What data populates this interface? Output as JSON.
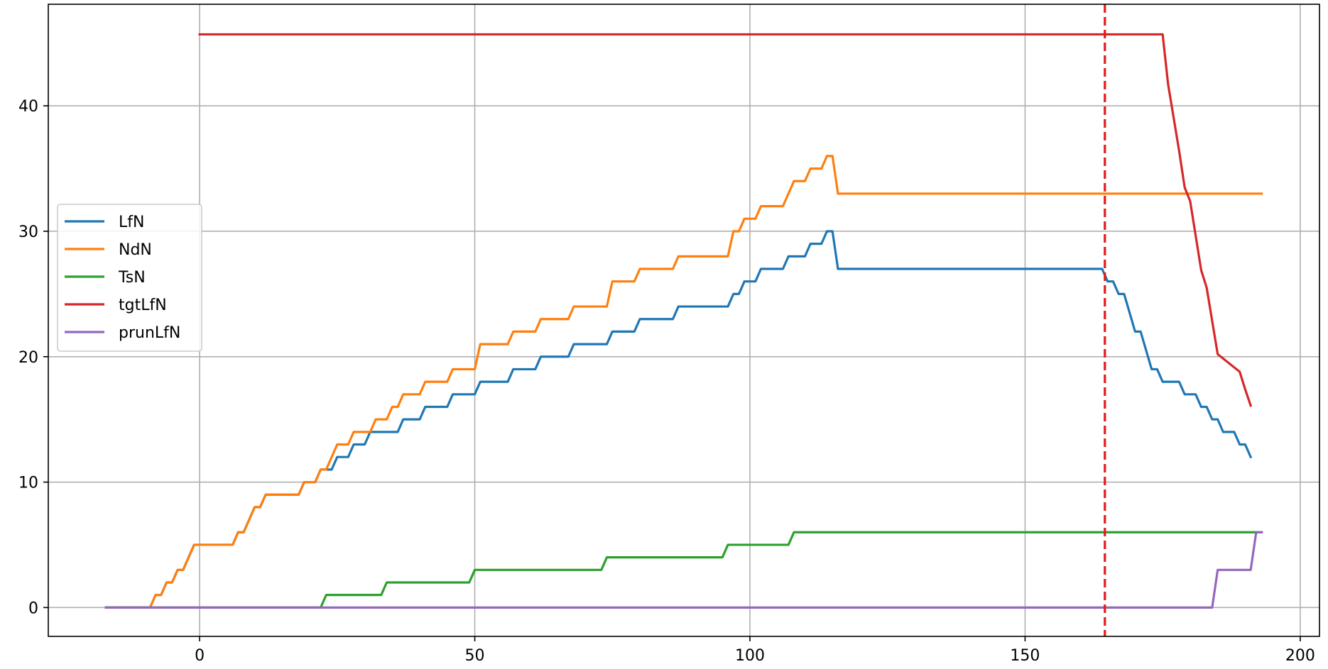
{
  "chart_data": {
    "type": "line",
    "title": "",
    "xlabel": "",
    "ylabel": "",
    "xlim": [
      -27.5,
      203.5
    ],
    "ylim": [
      -2.3,
      48.1
    ],
    "xticks": [
      0,
      50,
      100,
      150,
      200
    ],
    "yticks": [
      0,
      10,
      20,
      30,
      40
    ],
    "grid": true,
    "legend_position": "center-left",
    "vline": {
      "x": 164.5,
      "color": "#e31a1c",
      "style": "dashed"
    },
    "series": [
      {
        "name": "LfN",
        "color": "#1f77b4",
        "points": [
          [
            -17,
            0
          ],
          [
            -9,
            0
          ],
          [
            -8,
            1
          ],
          [
            -7,
            1
          ],
          [
            -6,
            2
          ],
          [
            -5,
            2
          ],
          [
            -4,
            3
          ],
          [
            -3,
            3
          ],
          [
            -1,
            5
          ],
          [
            6,
            5
          ],
          [
            7,
            6
          ],
          [
            8,
            6
          ],
          [
            10,
            8
          ],
          [
            11,
            8
          ],
          [
            12,
            9
          ],
          [
            18,
            9
          ],
          [
            19,
            10
          ],
          [
            21,
            10
          ],
          [
            22,
            11
          ],
          [
            23,
            11
          ],
          [
            24,
            11
          ],
          [
            25,
            12
          ],
          [
            27,
            12
          ],
          [
            28,
            13
          ],
          [
            30,
            13
          ],
          [
            31,
            14
          ],
          [
            36,
            14
          ],
          [
            37,
            15
          ],
          [
            40,
            15
          ],
          [
            41,
            16
          ],
          [
            45,
            16
          ],
          [
            46,
            17
          ],
          [
            50,
            17
          ],
          [
            51,
            18
          ],
          [
            56,
            18
          ],
          [
            57,
            19
          ],
          [
            61,
            19
          ],
          [
            62,
            20
          ],
          [
            67,
            20
          ],
          [
            68,
            21
          ],
          [
            74,
            21
          ],
          [
            75,
            22
          ],
          [
            79,
            22
          ],
          [
            80,
            23
          ],
          [
            86,
            23
          ],
          [
            87,
            24
          ],
          [
            96,
            24
          ],
          [
            97,
            25
          ],
          [
            98,
            25
          ],
          [
            99,
            26
          ],
          [
            101,
            26
          ],
          [
            102,
            27
          ],
          [
            106,
            27
          ],
          [
            107,
            28
          ],
          [
            110,
            28
          ],
          [
            111,
            29
          ],
          [
            113,
            29
          ],
          [
            114,
            30
          ],
          [
            115,
            30
          ],
          [
            116,
            27
          ],
          [
            164,
            27
          ],
          [
            165,
            26
          ],
          [
            166,
            26
          ],
          [
            167,
            25
          ],
          [
            168,
            25
          ],
          [
            170,
            22
          ],
          [
            171,
            22
          ],
          [
            173,
            19
          ],
          [
            174,
            19
          ],
          [
            175,
            18
          ],
          [
            178,
            18
          ],
          [
            179,
            17
          ],
          [
            181,
            17
          ],
          [
            182,
            16
          ],
          [
            183,
            16
          ],
          [
            184,
            15
          ],
          [
            185,
            15
          ],
          [
            186,
            14
          ],
          [
            188,
            14
          ],
          [
            189,
            13
          ],
          [
            190,
            13
          ],
          [
            191,
            12
          ]
        ]
      },
      {
        "name": "NdN",
        "color": "#ff7f0e",
        "points": [
          [
            -17,
            0
          ],
          [
            -9,
            0
          ],
          [
            -8,
            1
          ],
          [
            -7,
            1
          ],
          [
            -6,
            2
          ],
          [
            -5,
            2
          ],
          [
            -4,
            3
          ],
          [
            -3,
            3
          ],
          [
            -1,
            5
          ],
          [
            6,
            5
          ],
          [
            7,
            6
          ],
          [
            8,
            6
          ],
          [
            10,
            8
          ],
          [
            11,
            8
          ],
          [
            12,
            9
          ],
          [
            18,
            9
          ],
          [
            19,
            10
          ],
          [
            21,
            10
          ],
          [
            22,
            11
          ],
          [
            23,
            11
          ],
          [
            25,
            13
          ],
          [
            27,
            13
          ],
          [
            28,
            14
          ],
          [
            31,
            14
          ],
          [
            32,
            15
          ],
          [
            34,
            15
          ],
          [
            35,
            16
          ],
          [
            36,
            16
          ],
          [
            37,
            17
          ],
          [
            40,
            17
          ],
          [
            41,
            18
          ],
          [
            45,
            18
          ],
          [
            46,
            19
          ],
          [
            50,
            19
          ],
          [
            51,
            21
          ],
          [
            56,
            21
          ],
          [
            57,
            22
          ],
          [
            61,
            22
          ],
          [
            62,
            23
          ],
          [
            67,
            23
          ],
          [
            68,
            24
          ],
          [
            74,
            24
          ],
          [
            75,
            26
          ],
          [
            79,
            26
          ],
          [
            80,
            27
          ],
          [
            86,
            27
          ],
          [
            87,
            28
          ],
          [
            96,
            28
          ],
          [
            97,
            30
          ],
          [
            98,
            30
          ],
          [
            99,
            31
          ],
          [
            101,
            31
          ],
          [
            102,
            32
          ],
          [
            106,
            32
          ],
          [
            108,
            34
          ],
          [
            110,
            34
          ],
          [
            111,
            35
          ],
          [
            113,
            35
          ],
          [
            114,
            36
          ],
          [
            115,
            36
          ],
          [
            116,
            33
          ],
          [
            193,
            33
          ]
        ]
      },
      {
        "name": "TsN",
        "color": "#2ca02c",
        "points": [
          [
            -17,
            0
          ],
          [
            22,
            0
          ],
          [
            23,
            1
          ],
          [
            33,
            1
          ],
          [
            34,
            2
          ],
          [
            49,
            2
          ],
          [
            50,
            3
          ],
          [
            73,
            3
          ],
          [
            74,
            4
          ],
          [
            95,
            4
          ],
          [
            96,
            5
          ],
          [
            107,
            5
          ],
          [
            108,
            6
          ],
          [
            193,
            6
          ]
        ]
      },
      {
        "name": "tgtLfN",
        "color": "#d62728",
        "points": [
          [
            0,
            45.7
          ],
          [
            175,
            45.7
          ],
          [
            176,
            41.7
          ],
          [
            178,
            36.4
          ],
          [
            179,
            33.5
          ],
          [
            180,
            32.4
          ],
          [
            182,
            26.9
          ],
          [
            183,
            25.5
          ],
          [
            185,
            20.2
          ],
          [
            189,
            18.8
          ],
          [
            190,
            17.4
          ],
          [
            191,
            16.1
          ]
        ]
      },
      {
        "name": "prunLfN",
        "color": "#9467bd",
        "points": [
          [
            -17,
            0
          ],
          [
            184,
            0
          ],
          [
            185,
            3
          ],
          [
            191,
            3
          ],
          [
            192,
            6
          ],
          [
            193,
            6
          ]
        ]
      }
    ]
  }
}
